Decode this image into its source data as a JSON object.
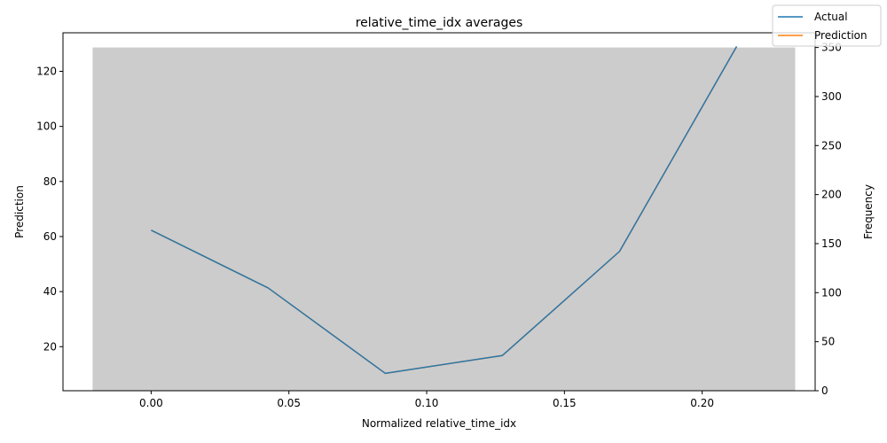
{
  "chart_data": {
    "type": "line",
    "title": "relative_time_idx averages",
    "xlabel": "Normalized relative_time_idx",
    "ylabel": "Prediction",
    "y2label": "Frequency",
    "xlim": [
      -0.032,
      0.241
    ],
    "ylim": [
      4.0,
      134.0
    ],
    "y2lim": [
      0,
      365
    ],
    "x_ticks": [
      0.0,
      0.05,
      0.1,
      0.15,
      0.2
    ],
    "x_tick_labels": [
      "0.00",
      "0.05",
      "0.10",
      "0.15",
      "0.20"
    ],
    "y_ticks": [
      20,
      40,
      60,
      80,
      100,
      120
    ],
    "y_tick_labels": [
      "20",
      "40",
      "60",
      "80",
      "100",
      "120"
    ],
    "y2_ticks": [
      0,
      50,
      100,
      150,
      200,
      250,
      300,
      350
    ],
    "y2_tick_labels": [
      "0",
      "50",
      "100",
      "150",
      "200",
      "250",
      "300",
      "350"
    ],
    "series": [
      {
        "name": "Actual",
        "color": "#1f77b4",
        "x": [
          0.0,
          0.0425,
          0.085,
          0.1275,
          0.17,
          0.2125
        ],
        "values": [
          62.3,
          41.3,
          10.3,
          16.8,
          54.6,
          129.0
        ]
      },
      {
        "name": "Prediction",
        "color": "#ff7f0e",
        "x": [
          0.0,
          0.0425,
          0.085,
          0.1275,
          0.17,
          0.2125
        ],
        "values": [
          62.3,
          41.3,
          10.3,
          16.8,
          54.6,
          129.0
        ]
      }
    ],
    "histogram": {
      "color": "#cccccc",
      "x_range": [
        -0.02125,
        0.23375
      ],
      "value": 350
    },
    "legend": {
      "position": "top-right"
    },
    "grid": false
  }
}
